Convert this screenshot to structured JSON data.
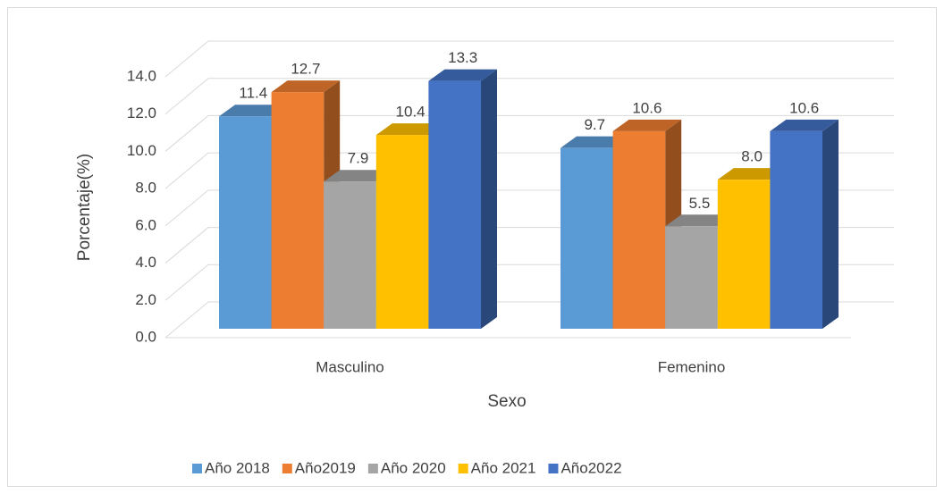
{
  "chart_data": {
    "type": "bar3d",
    "x_label": "Sexo",
    "y_label": "Porcentaje(%)",
    "categories": [
      "Masculino",
      "Femenino"
    ],
    "series": [
      {
        "name": "Año 2018",
        "color": "#5b9bd5",
        "values": [
          11.4,
          9.7
        ],
        "value_labels": [
          "11.4",
          "9.7"
        ]
      },
      {
        "name": "Año2019",
        "color": "#ed7d31",
        "values": [
          12.7,
          10.6
        ],
        "value_labels": [
          "12.7",
          "10.6"
        ]
      },
      {
        "name": "Año 2020",
        "color": "#a5a5a5",
        "values": [
          7.9,
          5.5
        ],
        "value_labels": [
          "7.9",
          "5.5"
        ]
      },
      {
        "name": "Año 2021",
        "color": "#ffc000",
        "values": [
          10.4,
          8.0
        ],
        "value_labels": [
          "10.4",
          "8.0"
        ]
      },
      {
        "name": "Año2022",
        "color": "#4472c4",
        "values": [
          13.3,
          10.6
        ],
        "value_labels": [
          "13.3",
          "10.6"
        ]
      }
    ],
    "ylim": [
      0,
      14
    ],
    "yticks": [
      {
        "value": 0,
        "label": "0.0"
      },
      {
        "value": 2,
        "label": "2.0"
      },
      {
        "value": 4,
        "label": "4.0"
      },
      {
        "value": 6,
        "label": "6.0"
      },
      {
        "value": 8,
        "label": "8.0"
      },
      {
        "value": 10,
        "label": "10.0"
      },
      {
        "value": 12,
        "label": "12.0"
      },
      {
        "value": 14,
        "label": "14.0"
      }
    ],
    "grid": true,
    "legend": "bottom"
  }
}
